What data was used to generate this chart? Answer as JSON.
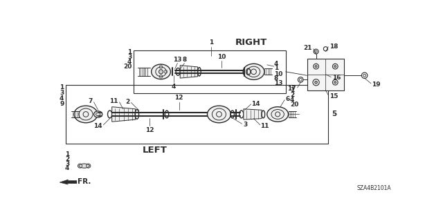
{
  "background_color": "#ffffff",
  "diagram_code": "SZA4B2101A",
  "right_label": "RIGHT",
  "left_label": "LEFT",
  "fr_label": "FR.",
  "line_color": "#2a2a2a",
  "font_size_numbers": 6.5,
  "font_size_title": 9.5
}
